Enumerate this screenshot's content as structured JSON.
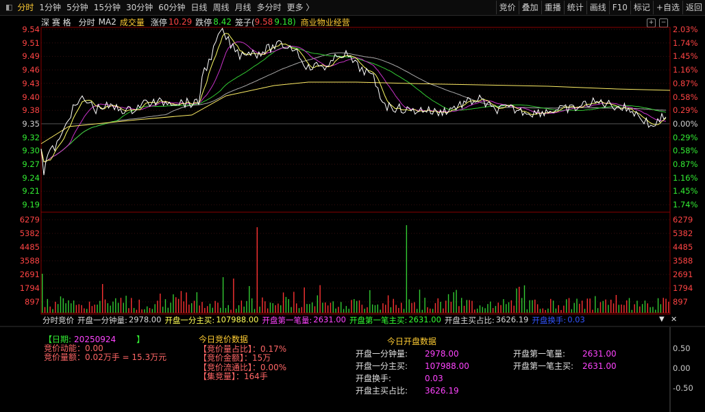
{
  "toolbar": {
    "periods": [
      "分时",
      "1分钟",
      "5分钟",
      "15分钟",
      "30分钟",
      "60分钟",
      "日线",
      "周线",
      "月线",
      "多分时",
      "更多 〉"
    ],
    "active_period": "分时",
    "actions": [
      "竞价",
      "叠加",
      "重播",
      "统计",
      "画线",
      "F10",
      "标记",
      "+自选",
      "返回"
    ]
  },
  "info": {
    "stock_name": "深 赛 格",
    "view": "分时",
    "ma": "MA2",
    "volume_label": "成交量",
    "limit_up_label": "涨停",
    "limit_up": "10.29",
    "limit_down_label": "跌停",
    "limit_down": "8.42",
    "cage_label": "笼子(",
    "cage_high": "9.58",
    "cage_low": "9.18)",
    "sector": "商业物业经营",
    "btn_plus": "+",
    "btn_minus": "−"
  },
  "price_axis": {
    "left": [
      "9.54",
      "9.51",
      "9.49",
      "9.46",
      "9.43",
      "9.40",
      "9.38",
      "9.35",
      "9.32",
      "9.30",
      "9.27",
      "9.24",
      "9.21",
      "9.19"
    ],
    "right": [
      "2.03%",
      "1.74%",
      "1.45%",
      "1.16%",
      "0.87%",
      "0.58%",
      "0.29%",
      "0.00%",
      "0.29%",
      "0.58%",
      "0.87%",
      "1.16%",
      "1.45%",
      "1.74%"
    ],
    "base_index": 7
  },
  "volume_axis": [
    "6279",
    "5382",
    "4485",
    "3588",
    "2691",
    "1794",
    "897"
  ],
  "auction_header": {
    "title": "分时竞价",
    "items": [
      {
        "label": "开盘一分钟量:",
        "value": "2978.00",
        "color": "#d8d8d8"
      },
      {
        "label": "开盘一分主买:",
        "value": "107988.00",
        "color": "#ffff55"
      },
      {
        "label": "开盘第一笔量:",
        "value": "2631.00",
        "color": "#ff44ff"
      },
      {
        "label": "开盘第一笔主买:",
        "value": "2631.00",
        "color": "#33ff33"
      },
      {
        "label": "开盘主买占比:",
        "value": "3626.19",
        "color": "#d8d8d8"
      },
      {
        "label": "开盘换手:",
        "value": "0.03",
        "color": "#3355ff"
      }
    ],
    "close": "✕"
  },
  "auction_left": {
    "date_open": "【日期:",
    "date": "20250924",
    "date_close": "】",
    "momentum": "竞价动能：0.00",
    "amount": "竞价量额：0.02万手 = 15.3万元"
  },
  "today_auction": {
    "title": "今日竞价数据",
    "rows": [
      "【竞价量占比】：0.17%",
      "【竞价金额】：15万",
      "【竞价流通比】：0.00%",
      "【集竞量】：164手"
    ]
  },
  "today_open": {
    "title": "今日开盘数据",
    "left": [
      {
        "label": "开盘一分钟量:",
        "value": "2978.00"
      },
      {
        "label": "开盘一分主买:",
        "value": "107988.00"
      },
      {
        "label": "开盘换手:",
        "value": "0.03"
      },
      {
        "label": "开盘主买占比:",
        "value": "3626.19"
      }
    ],
    "right": [
      {
        "label": "开盘第一笔量:",
        "value": "2631.00"
      },
      {
        "label": "开盘第一笔主买:",
        "value": "2631.00"
      }
    ]
  },
  "bottom_axis": [
    "0.50",
    "0.00",
    "-0.50"
  ],
  "colors": {
    "up": "#ff3333",
    "down": "#33cc33",
    "price_line": "#ffffff",
    "ma_yellow": "#ffff66",
    "ma_magenta": "#cc33cc",
    "ma_green": "#33cc33",
    "ma_gray": "#aaaaaa"
  }
}
